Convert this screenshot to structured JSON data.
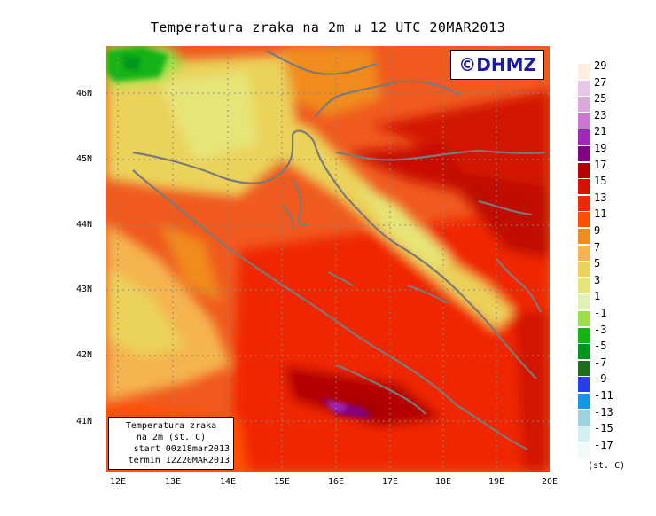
{
  "title": "Temperatura zraka na 2m u 12 UTC 20MAR2013",
  "logo": "©DHMZ",
  "infobox": {
    "line1": "Temperatura zraka",
    "line2": "na 2m (st. C)",
    "line3": "start 00z18mar2013",
    "line4": "termin 12Z20MAR2013"
  },
  "lat_labels": [
    "46N",
    "45N",
    "44N",
    "43N",
    "42N",
    "41N"
  ],
  "lon_labels": [
    "12E",
    "13E",
    "14E",
    "15E",
    "16E",
    "17E",
    "18E",
    "19E",
    "20E"
  ],
  "legend": {
    "units": "(st. C)",
    "labels": [
      "29",
      "27",
      "25",
      "23",
      "21",
      "19",
      "17",
      "15",
      "13",
      "11",
      "9",
      "7",
      "5",
      "3",
      "1",
      "-1",
      "-3",
      "-5",
      "-7",
      "-9",
      "-11",
      "-13",
      "-15",
      "-17"
    ],
    "colors": [
      "#fdeee0",
      "#e6c8e6",
      "#dca8dc",
      "#c878d2",
      "#a028be",
      "#820082",
      "#b40000",
      "#d21400",
      "#f02800",
      "#ff5000",
      "#f08c1e",
      "#f5b450",
      "#ebd25a",
      "#e6e678",
      "#e1f0b4",
      "#9be146",
      "#14b414",
      "#00961e",
      "#1e6e1e",
      "#283cf0",
      "#1496e6",
      "#9bd2e1",
      "#d2f0f0",
      "#f0fafa"
    ]
  }
}
